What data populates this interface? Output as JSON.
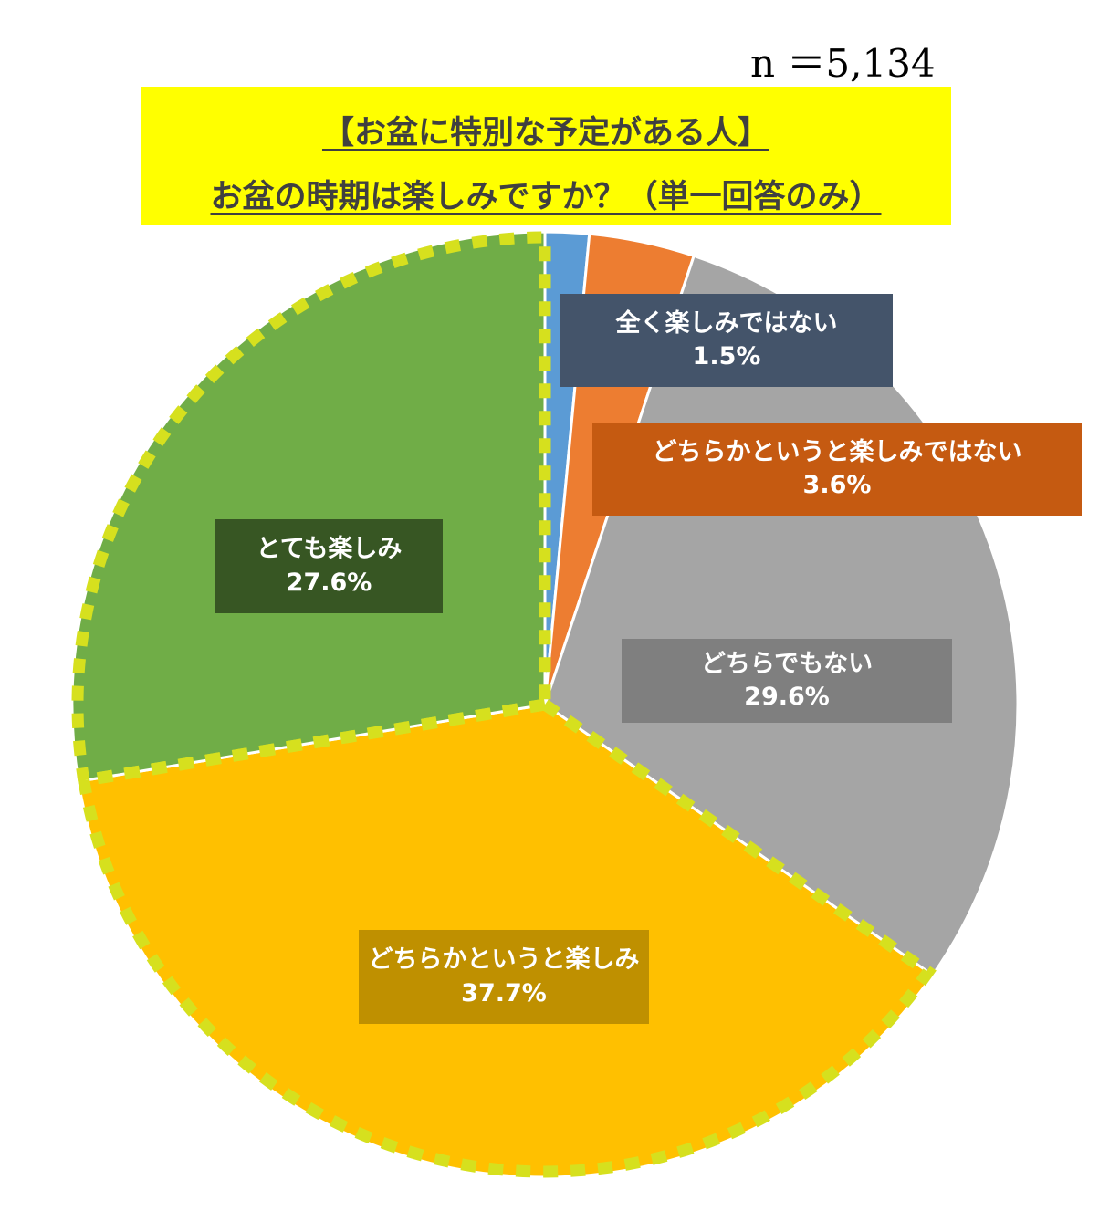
{
  "sample_size_label": "n ＝5,134",
  "title": {
    "line1": "【お盆に特別な予定がある人】",
    "line2": "お盆の時期は楽しみですか？（単一回答のみ）"
  },
  "colors": {
    "title_bg": "#ffff00",
    "highlight_dash": "#d6e01e"
  },
  "chart_data": {
    "type": "pie",
    "unit": "%",
    "slices": [
      {
        "label": "全く楽しみではない",
        "value": 1.5,
        "value_label": "1.5%",
        "color": "#5b9bd5",
        "label_bg": "#44546a"
      },
      {
        "label": "どちらかというと楽しみではない",
        "value": 3.6,
        "value_label": "3.6%",
        "color": "#ed7d31",
        "label_bg": "#c55a11"
      },
      {
        "label": "どちらでもない",
        "value": 29.6,
        "value_label": "29.6%",
        "color": "#a5a5a5",
        "label_bg": "#7f7f7f"
      },
      {
        "label": "どちらかというと楽しみ",
        "value": 37.7,
        "value_label": "37.7%",
        "color": "#ffc000",
        "label_bg": "#bf9000",
        "highlighted": true
      },
      {
        "label": "とても楽しみ",
        "value": 27.6,
        "value_label": "27.6%",
        "color": "#70ad47",
        "label_bg": "#375623",
        "highlighted": true
      }
    ]
  }
}
